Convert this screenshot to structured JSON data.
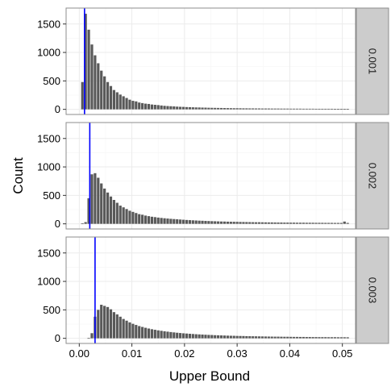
{
  "chart_data": {
    "type": "bar",
    "xlabel": "Upper Bound",
    "ylabel": "Count",
    "xlim": [
      -0.0025,
      0.0525
    ],
    "ylim": [
      -90,
      1780
    ],
    "x_ticks": [
      0.0,
      0.01,
      0.02,
      0.03,
      0.04,
      0.05
    ],
    "x_tick_labels": [
      "0.00",
      "0.01",
      "0.02",
      "0.03",
      "0.04",
      "0.05"
    ],
    "y_ticks": [
      0,
      500,
      1000,
      1500
    ],
    "y_tick_labels": [
      "0",
      "500",
      "1000",
      "1500"
    ],
    "grid": true,
    "bar_color": "#595959",
    "vline_color": "#0000ff",
    "strip_fill": "#cccccc",
    "panel_border": "#8c8c8c",
    "grid_major": "#ebebeb",
    "grid_minor": "#f5f5f5",
    "x": [
      0.0006,
      0.0012,
      0.0018,
      0.0024,
      0.003,
      0.0036,
      0.0042,
      0.0048,
      0.0054,
      0.006,
      0.0066,
      0.0072,
      0.0078,
      0.0084,
      0.009,
      0.0096,
      0.0102,
      0.0108,
      0.0114,
      0.012,
      0.0126,
      0.0132,
      0.0138,
      0.0144,
      0.015,
      0.0156,
      0.0162,
      0.0168,
      0.0174,
      0.018,
      0.0186,
      0.0192,
      0.0198,
      0.0204,
      0.021,
      0.0216,
      0.0222,
      0.0228,
      0.0234,
      0.024,
      0.0246,
      0.0252,
      0.0258,
      0.0264,
      0.027,
      0.0276,
      0.0282,
      0.0288,
      0.0294,
      0.03,
      0.0306,
      0.0312,
      0.0318,
      0.0324,
      0.033,
      0.0336,
      0.0342,
      0.0348,
      0.0354,
      0.036,
      0.0366,
      0.0372,
      0.0378,
      0.0384,
      0.039,
      0.0396,
      0.0402,
      0.0408,
      0.0414,
      0.042,
      0.0426,
      0.0432,
      0.0438,
      0.0444,
      0.045,
      0.0456,
      0.0462,
      0.0468,
      0.0474,
      0.048,
      0.0486,
      0.0492,
      0.0498,
      0.0504,
      0.051
    ],
    "panels": [
      {
        "strip": "0.001",
        "vline": 0.001,
        "values": [
          480,
          1680,
          1400,
          1140,
          950,
          810,
          680,
          580,
          480,
          410,
          340,
          300,
          260,
          230,
          200,
          170,
          150,
          140,
          120,
          110,
          100,
          95,
          85,
          80,
          75,
          68,
          62,
          58,
          55,
          52,
          48,
          45,
          43,
          40,
          38,
          36,
          34,
          33,
          31,
          30,
          28,
          27,
          26,
          25,
          24,
          23,
          22,
          21,
          20,
          20,
          19,
          18,
          18,
          17,
          17,
          16,
          16,
          15,
          15,
          15,
          14,
          14,
          14,
          13,
          13,
          13,
          12,
          12,
          12,
          12,
          11,
          11,
          11,
          11,
          10,
          10,
          10,
          10,
          10,
          10,
          9,
          9,
          9,
          9,
          9
        ]
      },
      {
        "strip": "0.002",
        "vline": 0.002,
        "values": [
          10,
          30,
          450,
          870,
          890,
          810,
          710,
          620,
          550,
          480,
          420,
          370,
          320,
          290,
          260,
          230,
          210,
          190,
          170,
          160,
          145,
          135,
          125,
          118,
          110,
          104,
          98,
          93,
          88,
          84,
          80,
          76,
          72,
          68,
          65,
          62,
          59,
          56,
          54,
          51,
          49,
          47,
          45,
          43,
          41,
          40,
          38,
          37,
          36,
          35,
          33,
          32,
          31,
          30,
          29,
          28,
          28,
          27,
          26,
          25,
          25,
          24,
          23,
          23,
          22,
          22,
          21,
          21,
          20,
          20,
          20,
          19,
          19,
          19,
          18,
          18,
          18,
          17,
          17,
          17,
          16,
          16,
          16,
          40,
          16
        ]
      },
      {
        "strip": "0.003",
        "vline": 0.003,
        "values": [
          0,
          0,
          5,
          90,
          380,
          500,
          590,
          570,
          550,
          510,
          460,
          420,
          380,
          340,
          310,
          280,
          255,
          235,
          215,
          200,
          185,
          172,
          160,
          150,
          140,
          132,
          124,
          117,
          110,
          104,
          98,
          93,
          88,
          84,
          80,
          76,
          72,
          69,
          66,
          63,
          60,
          58,
          55,
          53,
          51,
          49,
          47,
          45,
          44,
          42,
          41,
          40,
          38,
          37,
          36,
          35,
          34,
          33,
          32,
          31,
          30,
          29,
          29,
          28,
          27,
          27,
          26,
          25,
          25,
          24,
          24,
          23,
          23,
          22,
          22,
          21,
          21,
          21,
          20,
          20,
          20,
          19,
          19,
          19,
          18
        ]
      }
    ]
  }
}
